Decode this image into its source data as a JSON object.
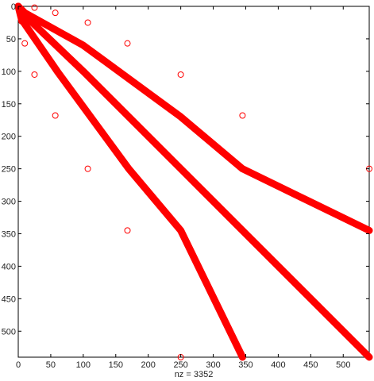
{
  "chart_data": {
    "type": "scatter",
    "subtype": "sparsity-pattern (spy plot)",
    "title": "",
    "xlabel": "nz = 3352",
    "ylabel": "",
    "xlim": [
      0,
      540
    ],
    "ylim": [
      540,
      0
    ],
    "y_axis_reversed": true,
    "grid": false,
    "x_ticks": [
      0,
      50,
      100,
      150,
      200,
      250,
      300,
      350,
      400,
      450,
      500
    ],
    "y_ticks": [
      0,
      50,
      100,
      150,
      200,
      250,
      300,
      350,
      400,
      450,
      500
    ],
    "marker": "circle",
    "marker_color": "#ff0000",
    "scattered_points": [
      [
        2,
        2
      ],
      [
        5,
        23
      ],
      [
        10,
        57
      ],
      [
        25,
        2
      ],
      [
        57,
        10
      ],
      [
        107,
        25
      ],
      [
        168,
        57
      ],
      [
        250,
        105
      ],
      [
        345,
        168
      ],
      [
        540,
        250
      ],
      [
        107,
        250
      ],
      [
        57,
        168
      ],
      [
        25,
        105
      ],
      [
        168,
        345
      ],
      [
        250,
        540
      ]
    ],
    "dense_bands": [
      {
        "name": "",
        "points": [
          [
            0,
            0
          ],
          [
            10,
            10
          ],
          [
            100,
            60
          ],
          [
            250,
            170
          ],
          [
            345,
            250
          ],
          [
            540,
            345
          ]
        ]
      },
      {
        "name": "",
        "points": [
          [
            0,
            0
          ],
          [
            8,
            12
          ],
          [
            100,
            100
          ],
          [
            250,
            250
          ],
          [
            345,
            345
          ],
          [
            540,
            540
          ]
        ]
      },
      {
        "name": "",
        "points": [
          [
            0,
            0
          ],
          [
            5,
            20
          ],
          [
            60,
            100
          ],
          [
            170,
            250
          ],
          [
            250,
            345
          ],
          [
            345,
            540
          ]
        ]
      }
    ]
  }
}
